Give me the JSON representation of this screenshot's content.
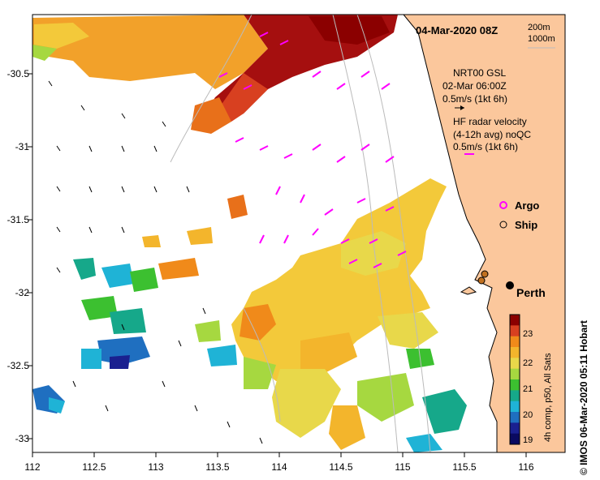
{
  "title": "04-Mar-2020 08Z",
  "depth_legend": [
    "200m",
    "1000m"
  ],
  "current_legend": {
    "line1": "NRT00 GSL",
    "line2": "02-Mar 06:00Z",
    "line3": "0.5m/s (1kt 6h)"
  },
  "radar_legend": {
    "line1": "HF radar velocity",
    "line2": "(4-12h avg) noQC",
    "line3": "0.5m/s (1kt 6h)"
  },
  "markers": {
    "argo": "Argo",
    "ship": "Ship"
  },
  "city": "Perth",
  "colorbar": {
    "label": "4h comp, p50, All Sats",
    "ticks": [
      "23",
      "22",
      "21",
      "20",
      "19"
    ],
    "colors": [
      "#8b0000",
      "#d84020",
      "#f08a1a",
      "#f3b52c",
      "#e8d84a",
      "#a6d840",
      "#3cc030",
      "#16a88a",
      "#1fb3d6",
      "#1f6fc0",
      "#1a2090",
      "#0a0a60"
    ]
  },
  "x_ticks": [
    "112",
    "112.5",
    "113",
    "113.5",
    "114",
    "114.5",
    "115",
    "115.5",
    "116"
  ],
  "y_ticks": [
    "-30.5",
    "-31",
    "-31.5",
    "-32",
    "-32.5",
    "-33"
  ],
  "credit": "© IMOS 06-Mar-2020 05:11 Hobart",
  "colors": {
    "land": "#fbc79c",
    "radar": "#ff00ff",
    "sst_hot": "#a50f0f",
    "sst_warm": "#f2a12a",
    "sst_mid": "#f3c93a",
    "sst_cool": "#3cc030",
    "sst_cold": "#1f8fd0"
  }
}
